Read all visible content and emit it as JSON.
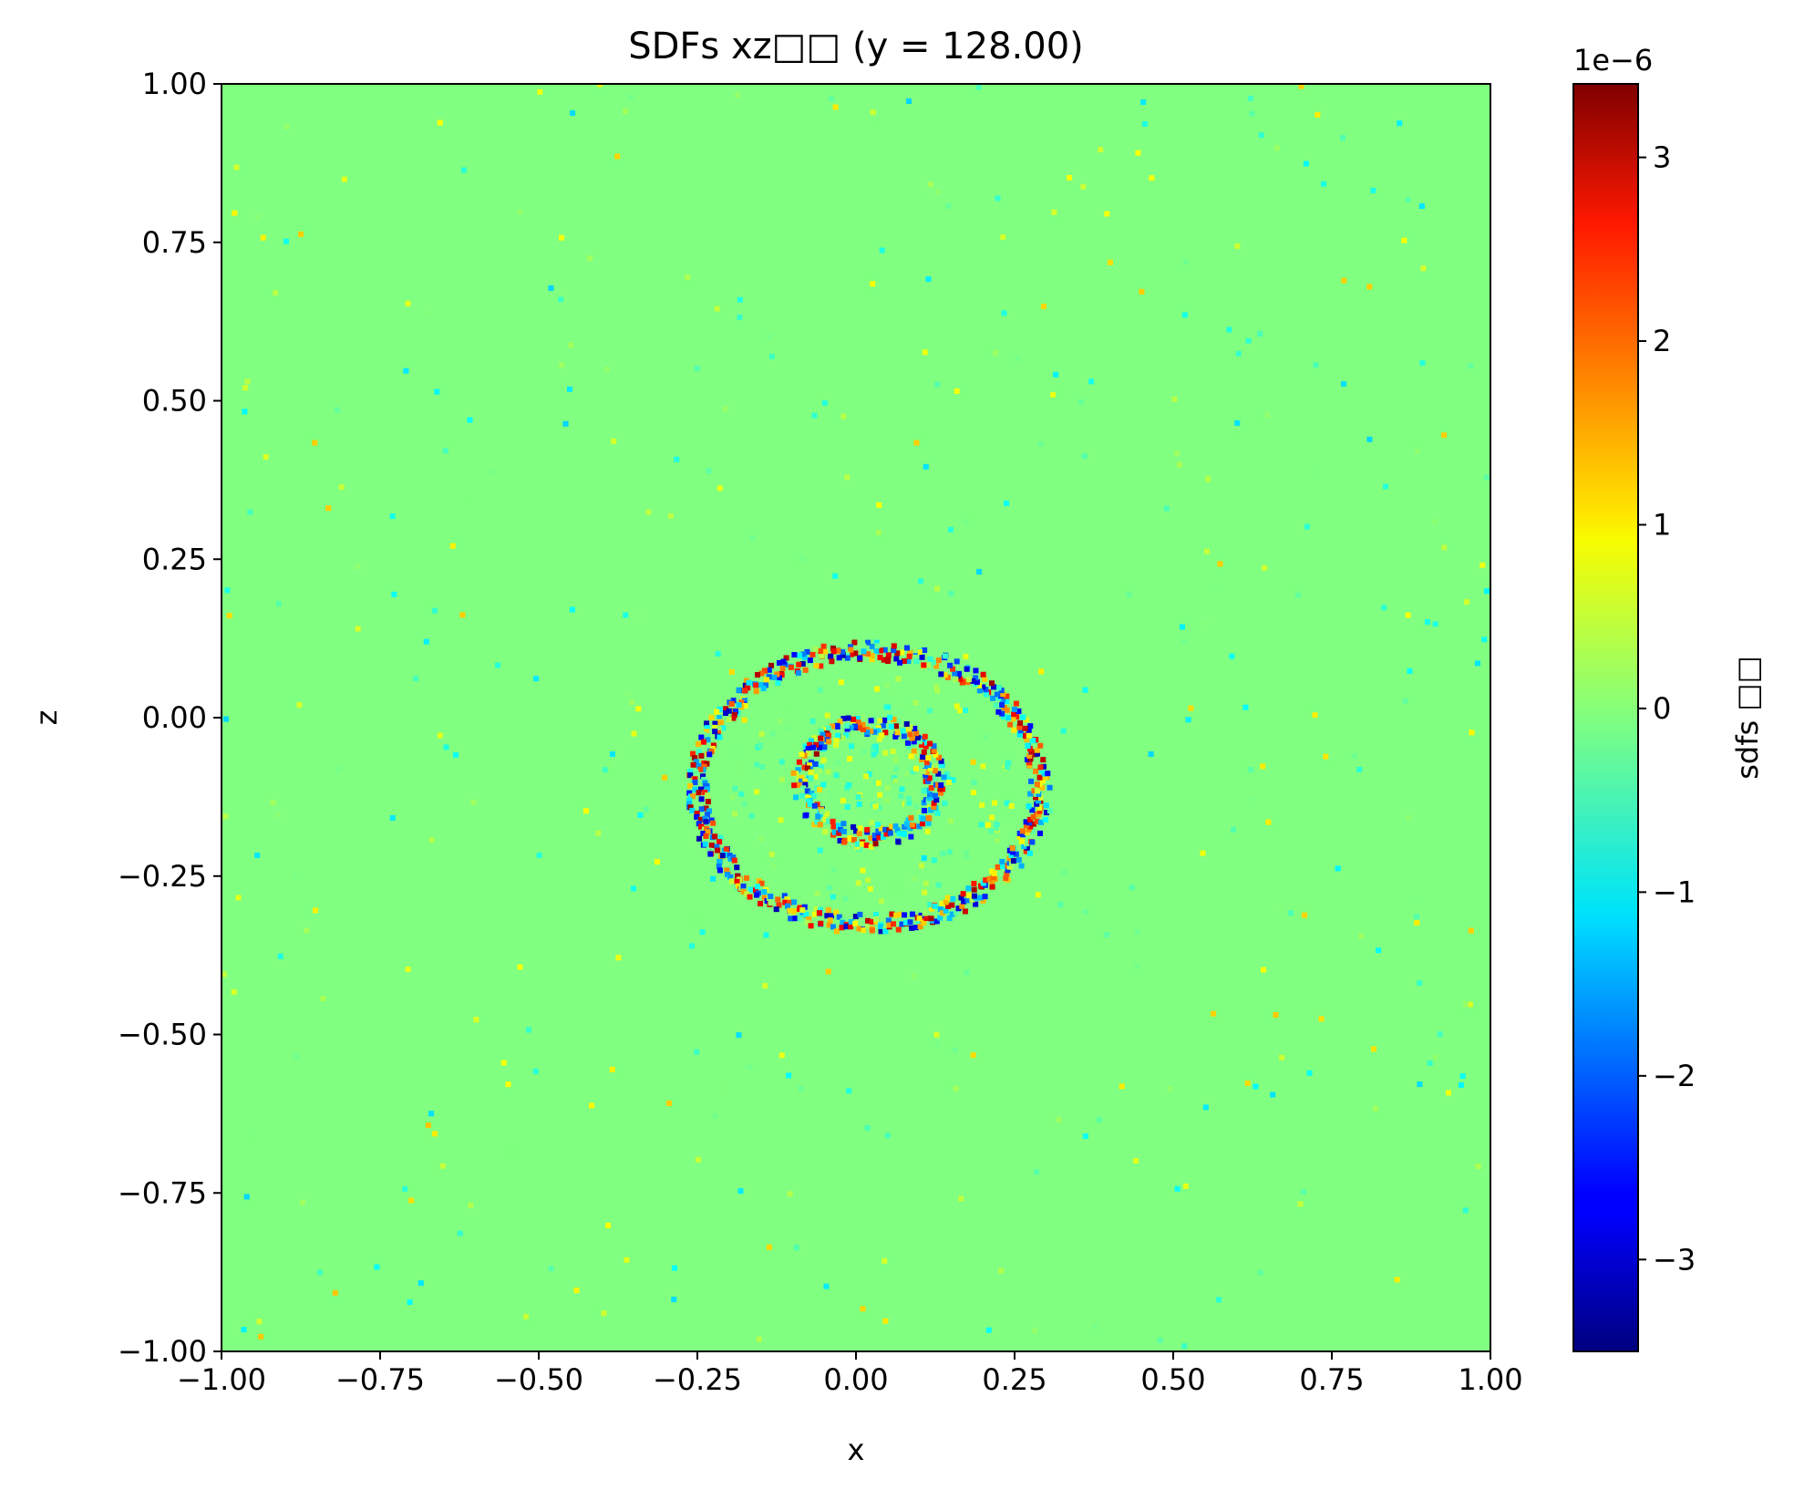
{
  "chart_data": {
    "type": "heatmap",
    "title": "SDFs xz□□ (y = 128.00)",
    "xlabel": "x",
    "ylabel": "z",
    "xlim": [
      -1.0,
      1.0
    ],
    "ylim": [
      -1.0,
      1.0
    ],
    "x_ticks": [
      "−1.00",
      "−0.75",
      "−0.50",
      "−0.25",
      "0.00",
      "0.25",
      "0.50",
      "0.75",
      "1.00"
    ],
    "y_ticks": [
      "−1.00",
      "−0.75",
      "−0.50",
      "−0.25",
      "0.00",
      "0.25",
      "0.50",
      "0.75",
      "1.00"
    ],
    "colormap": "jet",
    "grid": false,
    "background_value": 0.0,
    "colorbar": {
      "label": "sdfs □□",
      "multiplier": "1e−6",
      "range": [
        -3.5e-06,
        3.4e-06
      ],
      "tick_values": [
        3,
        2,
        1,
        0,
        -1,
        -2,
        -3
      ],
      "tick_labels": [
        "3",
        "2",
        "1",
        "0",
        "−1",
        "−2",
        "−3"
      ],
      "position": "right"
    },
    "features": [
      {
        "shape": "ring",
        "name": "outer-ring",
        "center": [
          0.02,
          -0.11
        ],
        "radius_x": 0.27,
        "radius_z": 0.215,
        "noise_amplitude": 3.2e-06
      },
      {
        "shape": "ring",
        "name": "inner-ring",
        "center": [
          0.02,
          -0.1
        ],
        "radius_x": 0.105,
        "radius_z": 0.09,
        "noise_amplitude": 3.2e-06
      }
    ],
    "scattered_noise_amplitude": 1.2e-06,
    "colors": {
      "background": "#80ff80",
      "axis": "#000000"
    }
  }
}
